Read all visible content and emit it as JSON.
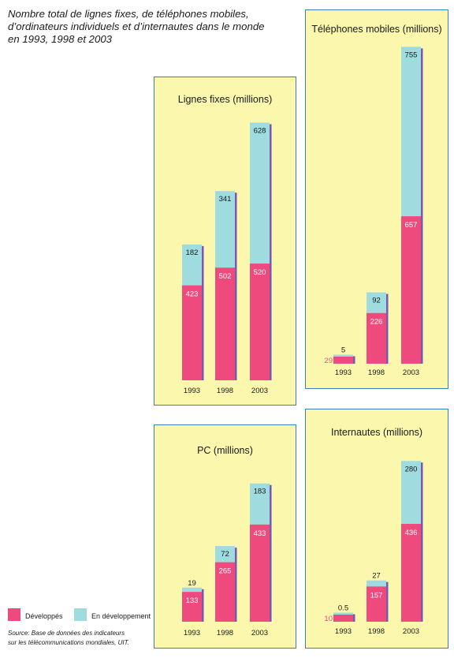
{
  "title": "Nombre total de lignes fixes, de téléphones mobiles,\nd’ordinateurs individuels et d’internautes dans le monde\nen 1993, 1998 et 2003",
  "legend": {
    "developed": "Développés",
    "developing": "En développement"
  },
  "source": "Source: Base de données des indicateurs\nsur les télécommunications mondiales, UIT.",
  "colors": {
    "developed": "#ef4a7e",
    "developing": "#9fdcdf",
    "shadow": "#7b57b5",
    "panel_bg": "#fbf7ad",
    "panel_border": "#3a7fb5"
  },
  "chart_data": [
    {
      "type": "bar",
      "title": "Lignes fixes (millions)",
      "stacked": true,
      "categories": [
        "1993",
        "1998",
        "2003"
      ],
      "series": [
        {
          "name": "Développés",
          "values": [
            423,
            502,
            520
          ],
          "labels": [
            "423",
            "502",
            "520"
          ]
        },
        {
          "name": "En développement",
          "values": [
            182,
            341,
            628
          ],
          "labels": [
            "182",
            "341",
            "628"
          ]
        }
      ]
    },
    {
      "type": "bar",
      "title": "Téléphones mobiles (millions)",
      "stacked": true,
      "categories": [
        "1993",
        "1998",
        "2003"
      ],
      "series": [
        {
          "name": "Développés",
          "values": [
            29,
            226,
            657
          ],
          "labels": [
            "29",
            "226",
            "657"
          ]
        },
        {
          "name": "En développement",
          "values": [
            5,
            92,
            755
          ],
          "labels": [
            "5",
            "92",
            "755"
          ]
        }
      ]
    },
    {
      "type": "bar",
      "title": "PC (millions)",
      "stacked": true,
      "categories": [
        "1993",
        "1998",
        "2003"
      ],
      "series": [
        {
          "name": "Développés",
          "values": [
            133,
            265,
            433
          ],
          "labels": [
            "133",
            "265",
            "433"
          ]
        },
        {
          "name": "En développement",
          "values": [
            19,
            72,
            183
          ],
          "labels": [
            "19",
            "72",
            "183"
          ]
        }
      ]
    },
    {
      "type": "bar",
      "title": "Internautes (millions)",
      "stacked": true,
      "categories": [
        "1993",
        "1998",
        "2003"
      ],
      "series": [
        {
          "name": "Développés",
          "values": [
            10,
            157,
            436
          ],
          "labels": [
            "10",
            "157",
            "436"
          ]
        },
        {
          "name": "En développement",
          "values": [
            0.5,
            27,
            280
          ],
          "labels": [
            "0.5",
            "27",
            "280"
          ]
        }
      ]
    }
  ]
}
